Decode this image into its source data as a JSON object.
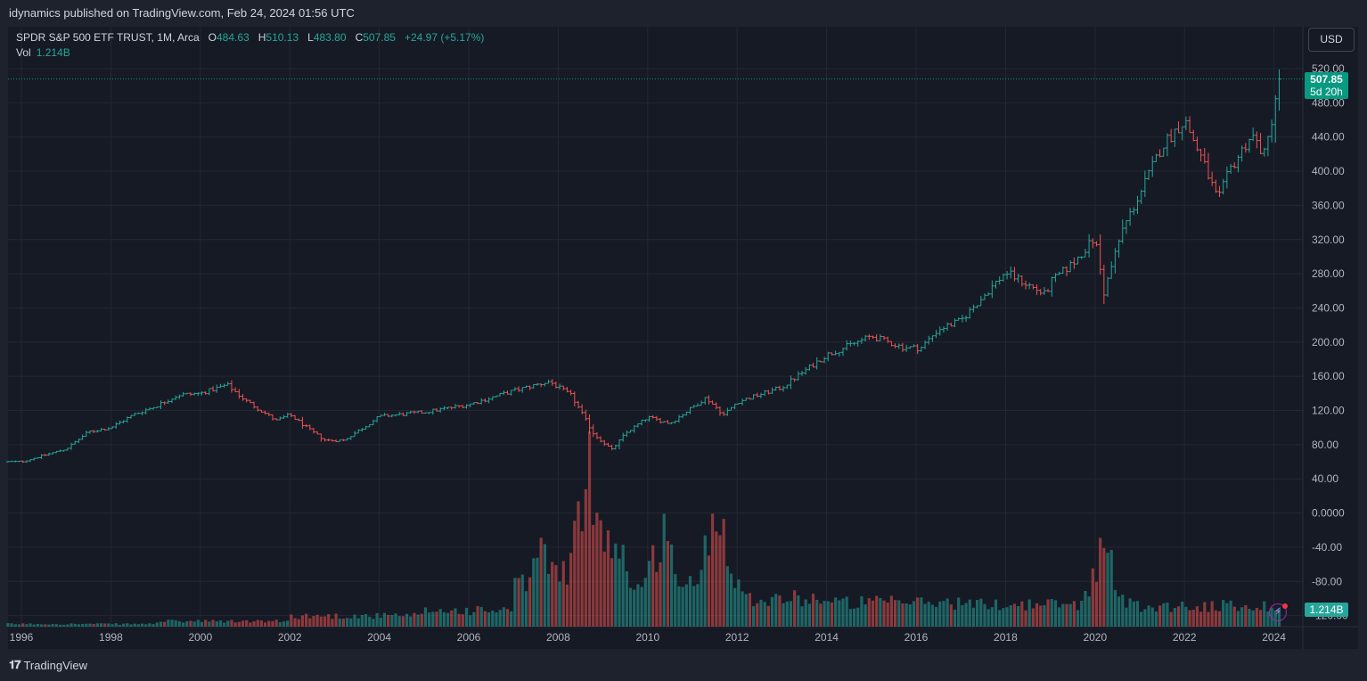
{
  "header": {
    "published": "idynamics published on TradingView.com, Feb 24, 2024 01:56 UTC"
  },
  "legend": {
    "symbol": "SPDR S&P 500 ETF TRUST, 1M, Arca",
    "o_label": "O",
    "o": "484.63",
    "h_label": "H",
    "h": "510.13",
    "l_label": "L",
    "l": "483.80",
    "c_label": "C",
    "c": "507.85",
    "change": "+24.97 (+5.17%)",
    "vol_label": "Vol",
    "vol": "1.214B"
  },
  "toolbar": {
    "currency": "USD"
  },
  "price_tag": {
    "price": "507.85",
    "countdown": "5d 20h"
  },
  "volume_tag": "1.214B",
  "footer": {
    "brand": "TradingView"
  },
  "colors": {
    "up": "#26a69a",
    "down": "#ef5350",
    "up_vol": "#26a69a",
    "down_vol": "#ef5350",
    "price_tag": "#089981"
  },
  "chart_data": {
    "type": "ohlc",
    "interval": "1M",
    "y_axis_ticks": [
      "520.00",
      "480.00",
      "440.00",
      "400.00",
      "360.00",
      "320.00",
      "280.00",
      "240.00",
      "200.00",
      "160.00",
      "120.00",
      "80.00",
      "40.00",
      "0.0000",
      "-40.00",
      "-80.00",
      "-120.00"
    ],
    "x_axis_ticks": [
      "1996",
      "1998",
      "2000",
      "2002",
      "2004",
      "2006",
      "2008",
      "2010",
      "2012",
      "2014",
      "2016",
      "2018",
      "2020",
      "2022",
      "2024"
    ],
    "ylim": [
      -125,
      535
    ],
    "grid": true,
    "last_price": 507.85,
    "price_anchors": [
      [
        1996.0,
        60
      ],
      [
        1997.0,
        75
      ],
      [
        1997.5,
        95
      ],
      [
        1998.0,
        100
      ],
      [
        1998.5,
        115
      ],
      [
        1999.0,
        125
      ],
      [
        1999.5,
        138
      ],
      [
        2000.0,
        140
      ],
      [
        2000.6,
        150
      ],
      [
        2001.0,
        132
      ],
      [
        2001.7,
        108
      ],
      [
        2002.0,
        115
      ],
      [
        2002.5,
        95
      ],
      [
        2002.8,
        85
      ],
      [
        2003.2,
        85
      ],
      [
        2003.7,
        102
      ],
      [
        2004.0,
        113
      ],
      [
        2005.0,
        118
      ],
      [
        2006.0,
        127
      ],
      [
        2007.0,
        143
      ],
      [
        2007.8,
        154
      ],
      [
        2008.3,
        137
      ],
      [
        2008.8,
        92
      ],
      [
        2009.2,
        74
      ],
      [
        2009.5,
        93
      ],
      [
        2010.0,
        112
      ],
      [
        2010.5,
        105
      ],
      [
        2011.3,
        135
      ],
      [
        2011.7,
        115
      ],
      [
        2012.0,
        130
      ],
      [
        2013.0,
        147
      ],
      [
        2014.0,
        185
      ],
      [
        2015.0,
        207
      ],
      [
        2015.7,
        194
      ],
      [
        2016.1,
        193
      ],
      [
        2016.5,
        215
      ],
      [
        2017.0,
        225
      ],
      [
        2018.0,
        282
      ],
      [
        2018.9,
        255
      ],
      [
        2019.0,
        270
      ],
      [
        2019.5,
        292
      ],
      [
        2020.0,
        322
      ],
      [
        2020.2,
        258
      ],
      [
        2020.6,
        330
      ],
      [
        2021.0,
        373
      ],
      [
        2021.5,
        430
      ],
      [
        2022.0,
        460
      ],
      [
        2022.4,
        413
      ],
      [
        2022.75,
        365
      ],
      [
        2023.0,
        400
      ],
      [
        2023.5,
        443
      ],
      [
        2023.8,
        418
      ],
      [
        2024.0,
        475
      ],
      [
        2024.1,
        507.85
      ]
    ],
    "volume_spikes": [
      [
        2007.6,
        90
      ],
      [
        2008.0,
        75
      ],
      [
        2008.7,
        175
      ],
      [
        2008.95,
        130
      ],
      [
        2009.3,
        100
      ],
      [
        2010.35,
        110
      ],
      [
        2011.55,
        140
      ],
      [
        2011.7,
        95
      ],
      [
        2020.2,
        90
      ]
    ]
  }
}
